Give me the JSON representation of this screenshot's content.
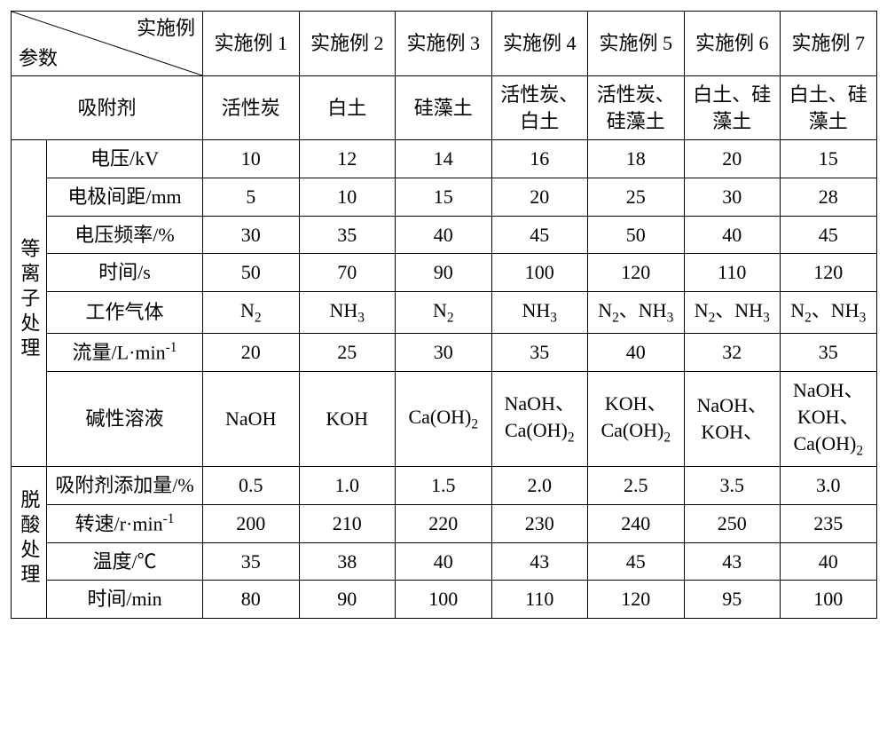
{
  "header": {
    "diag_top": "实施例",
    "diag_bottom": "参数",
    "cols": [
      "实施例 1",
      "实施例 2",
      "实施例 3",
      "实施例 4",
      "实施例 5",
      "实施例 6",
      "实施例 7"
    ]
  },
  "adsorbent": {
    "label": "吸附剂",
    "values": [
      "活性炭",
      "白土",
      "硅藻土",
      "活性炭、白土",
      "活性炭、硅藻土",
      "白土、硅藻土",
      "白土、硅藻土"
    ]
  },
  "groups": [
    {
      "name": "等离子处理",
      "rows": [
        {
          "label": "电压/kV",
          "values": [
            "10",
            "12",
            "14",
            "16",
            "18",
            "20",
            "15"
          ]
        },
        {
          "label": "电极间距/mm",
          "values": [
            "5",
            "10",
            "15",
            "20",
            "25",
            "30",
            "28"
          ]
        },
        {
          "label": "电压频率/%",
          "values": [
            "30",
            "35",
            "40",
            "45",
            "50",
            "40",
            "45"
          ]
        },
        {
          "label": "时间/s",
          "values": [
            "50",
            "70",
            "90",
            "100",
            "120",
            "110",
            "120"
          ]
        },
        {
          "label_html": "工作气体",
          "values_html": [
            "N<sub>2</sub>",
            "NH<sub>3</sub>",
            "N<sub>2</sub>",
            "NH<sub>3</sub>",
            "N<sub>2</sub>、NH<sub>3</sub>",
            "N<sub>2</sub>、NH<sub>3</sub>",
            "N<sub>2</sub>、NH<sub>3</sub>"
          ]
        },
        {
          "label_html": "流量/L·min<sup>-1</sup>",
          "values": [
            "20",
            "25",
            "30",
            "35",
            "40",
            "32",
            "35"
          ]
        },
        {
          "label_html": "碱性溶液",
          "values_html": [
            "NaOH",
            "KOH",
            "Ca(OH)<sub>2</sub>",
            "NaOH、Ca(OH)<sub>2</sub>",
            "KOH、Ca(OH)<sub>2</sub>",
            "NaOH、KOH、",
            "NaOH、KOH、Ca(OH)<sub>2</sub>"
          ]
        }
      ]
    },
    {
      "name": "脱酸处理",
      "rows": [
        {
          "label": "吸附剂添加量/%",
          "values": [
            "0.5",
            "1.0",
            "1.5",
            "2.0",
            "2.5",
            "3.5",
            "3.0"
          ]
        },
        {
          "label_html": "转速/r·min<sup>-1</sup>",
          "values": [
            "200",
            "210",
            "220",
            "230",
            "240",
            "250",
            "235"
          ]
        },
        {
          "label": "温度/℃",
          "values": [
            "35",
            "38",
            "40",
            "43",
            "45",
            "43",
            "40"
          ]
        },
        {
          "label": "时间/min",
          "values": [
            "80",
            "90",
            "100",
            "110",
            "120",
            "95",
            "100"
          ]
        }
      ]
    }
  ]
}
